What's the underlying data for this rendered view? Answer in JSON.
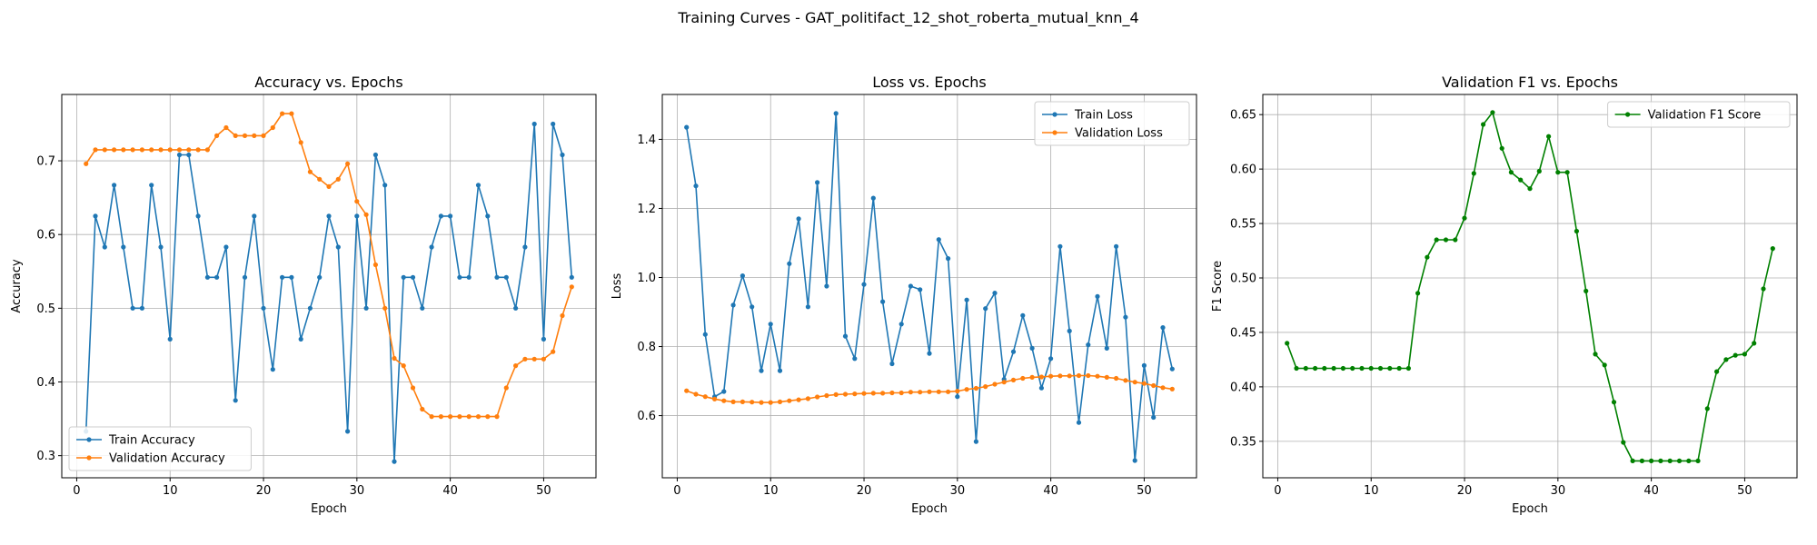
{
  "figure": {
    "suptitle": "Training Curves - GAT_politifact_12_shot_roberta_mutual_knn_4"
  },
  "chart_data": [
    {
      "type": "line",
      "title": "Accuracy vs. Epochs",
      "xlabel": "Epoch",
      "ylabel": "Accuracy",
      "xlim": [
        -1.6,
        55.6
      ],
      "ylim": [
        0.27,
        0.79
      ],
      "xticks": [
        0,
        10,
        20,
        30,
        40,
        50
      ],
      "yticks": [
        0.3,
        0.4,
        0.5,
        0.6,
        0.7
      ],
      "ytick_format": 1,
      "grid": true,
      "legend_position": "lower-left",
      "x": [
        1,
        2,
        3,
        4,
        5,
        6,
        7,
        8,
        9,
        10,
        11,
        12,
        13,
        14,
        15,
        16,
        17,
        18,
        19,
        20,
        21,
        22,
        23,
        24,
        25,
        26,
        27,
        28,
        29,
        30,
        31,
        32,
        33,
        34,
        35,
        36,
        37,
        38,
        39,
        40,
        41,
        42,
        43,
        44,
        45,
        46,
        47,
        48,
        49,
        50,
        51,
        52,
        53
      ],
      "series": [
        {
          "name": "Train Accuracy",
          "color": "#1f77b4",
          "values": [
            0.333,
            0.625,
            0.583,
            0.667,
            0.583,
            0.5,
            0.5,
            0.667,
            0.583,
            0.458,
            0.708,
            0.708,
            0.625,
            0.542,
            0.542,
            0.583,
            0.375,
            0.542,
            0.625,
            0.5,
            0.417,
            0.542,
            0.542,
            0.458,
            0.5,
            0.542,
            0.625,
            0.583,
            0.333,
            0.625,
            0.5,
            0.708,
            0.667,
            0.292,
            0.542,
            0.542,
            0.5,
            0.583,
            0.625,
            0.625,
            0.542,
            0.542,
            0.667,
            0.625,
            0.542,
            0.542,
            0.5,
            0.583,
            0.75,
            0.458,
            0.75,
            0.708,
            0.542
          ]
        },
        {
          "name": "Validation Accuracy",
          "color": "#ff7f0e",
          "values": [
            0.696,
            0.715,
            0.715,
            0.715,
            0.715,
            0.715,
            0.715,
            0.715,
            0.715,
            0.715,
            0.715,
            0.715,
            0.715,
            0.715,
            0.734,
            0.745,
            0.734,
            0.734,
            0.734,
            0.734,
            0.745,
            0.764,
            0.764,
            0.725,
            0.685,
            0.675,
            0.665,
            0.675,
            0.696,
            0.645,
            0.627,
            0.559,
            0.5,
            0.432,
            0.422,
            0.392,
            0.363,
            0.353,
            0.353,
            0.353,
            0.353,
            0.353,
            0.353,
            0.353,
            0.353,
            0.392,
            0.422,
            0.431,
            0.431,
            0.431,
            0.441,
            0.49,
            0.529
          ]
        }
      ]
    },
    {
      "type": "line",
      "title": "Loss vs. Epochs",
      "xlabel": "Epoch",
      "ylabel": "Loss",
      "xlim": [
        -1.6,
        55.6
      ],
      "ylim": [
        0.42,
        1.53
      ],
      "xticks": [
        0,
        10,
        20,
        30,
        40,
        50
      ],
      "yticks": [
        0.6,
        0.8,
        1.0,
        1.2,
        1.4
      ],
      "ytick_format": 1,
      "grid": true,
      "legend_position": "top-right",
      "x": [
        1,
        2,
        3,
        4,
        5,
        6,
        7,
        8,
        9,
        10,
        11,
        12,
        13,
        14,
        15,
        16,
        17,
        18,
        19,
        20,
        21,
        22,
        23,
        24,
        25,
        26,
        27,
        28,
        29,
        30,
        31,
        32,
        33,
        34,
        35,
        36,
        37,
        38,
        39,
        40,
        41,
        42,
        43,
        44,
        45,
        46,
        47,
        48,
        49,
        50,
        51,
        52,
        53
      ],
      "series": [
        {
          "name": "Train Loss",
          "color": "#1f77b4",
          "values": [
            1.435,
            1.265,
            0.835,
            0.655,
            0.67,
            0.92,
            1.005,
            0.915,
            0.73,
            0.865,
            0.73,
            1.04,
            1.17,
            0.915,
            1.275,
            0.975,
            1.475,
            0.83,
            0.765,
            0.98,
            1.23,
            0.93,
            0.75,
            0.865,
            0.975,
            0.965,
            0.78,
            1.11,
            1.055,
            0.655,
            0.935,
            0.525,
            0.91,
            0.955,
            0.705,
            0.785,
            0.89,
            0.795,
            0.68,
            0.765,
            1.09,
            0.845,
            0.58,
            0.805,
            0.945,
            0.795,
            1.09,
            0.885,
            0.47,
            0.745,
            0.595,
            0.855,
            0.735
          ]
        },
        {
          "name": "Validation Loss",
          "color": "#ff7f0e",
          "values": [
            0.672,
            0.662,
            0.655,
            0.648,
            0.643,
            0.64,
            0.64,
            0.639,
            0.638,
            0.638,
            0.64,
            0.643,
            0.646,
            0.649,
            0.654,
            0.658,
            0.661,
            0.662,
            0.663,
            0.664,
            0.665,
            0.665,
            0.666,
            0.666,
            0.668,
            0.668,
            0.669,
            0.669,
            0.669,
            0.671,
            0.676,
            0.679,
            0.684,
            0.691,
            0.697,
            0.703,
            0.708,
            0.711,
            0.712,
            0.714,
            0.715,
            0.715,
            0.716,
            0.716,
            0.714,
            0.711,
            0.708,
            0.702,
            0.697,
            0.693,
            0.687,
            0.681,
            0.677
          ]
        }
      ]
    },
    {
      "type": "line",
      "title": "Validation F1 vs. Epochs",
      "xlabel": "Epoch",
      "ylabel": "F1 Score",
      "xlim": [
        -1.6,
        55.6
      ],
      "ylim": [
        0.3165,
        0.6685
      ],
      "xticks": [
        0,
        10,
        20,
        30,
        40,
        50
      ],
      "yticks": [
        0.35,
        0.4,
        0.45,
        0.5,
        0.55,
        0.6,
        0.65
      ],
      "ytick_format": 2,
      "grid": true,
      "legend_position": "top-right",
      "x": [
        1,
        2,
        3,
        4,
        5,
        6,
        7,
        8,
        9,
        10,
        11,
        12,
        13,
        14,
        15,
        16,
        17,
        18,
        19,
        20,
        21,
        22,
        23,
        24,
        25,
        26,
        27,
        28,
        29,
        30,
        31,
        32,
        33,
        34,
        35,
        36,
        37,
        38,
        39,
        40,
        41,
        42,
        43,
        44,
        45,
        46,
        47,
        48,
        49,
        50,
        51,
        52,
        53
      ],
      "series": [
        {
          "name": "Validation F1 Score",
          "color": "#008000",
          "values": [
            0.44,
            0.417,
            0.417,
            0.417,
            0.417,
            0.417,
            0.417,
            0.417,
            0.417,
            0.417,
            0.417,
            0.417,
            0.417,
            0.417,
            0.486,
            0.519,
            0.535,
            0.535,
            0.535,
            0.555,
            0.596,
            0.641,
            0.652,
            0.619,
            0.597,
            0.59,
            0.582,
            0.598,
            0.63,
            0.597,
            0.597,
            0.543,
            0.488,
            0.43,
            0.42,
            0.386,
            0.349,
            0.332,
            0.332,
            0.332,
            0.332,
            0.332,
            0.332,
            0.332,
            0.332,
            0.38,
            0.414,
            0.425,
            0.429,
            0.43,
            0.44,
            0.49,
            0.527
          ]
        }
      ]
    }
  ]
}
